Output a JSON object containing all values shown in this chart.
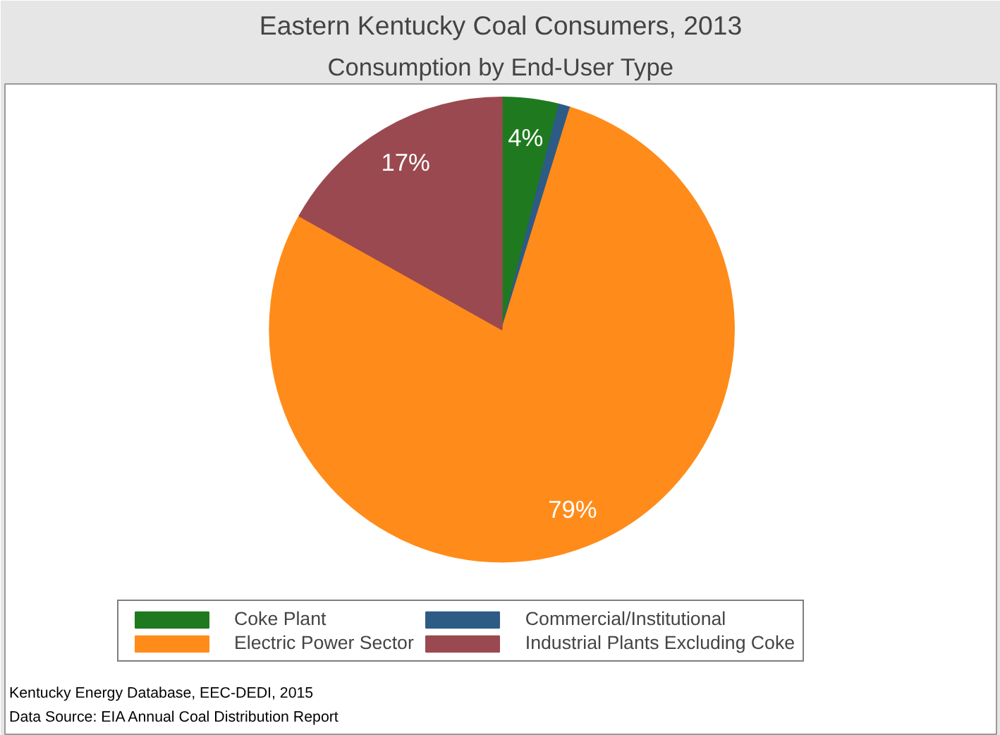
{
  "chart_data": {
    "type": "pie",
    "title": "Eastern Kentucky Coal Consumers, 2013",
    "subtitle": "Consumption by End-User Type",
    "categories": [
      "Coke Plant",
      "Commercial/Institutional",
      "Electric Power Sector",
      "Industrial Plants Excluding Coke"
    ],
    "values": [
      4,
      0.8,
      79,
      17
    ],
    "colors": [
      "#1f7a1f",
      "#2d5b86",
      "#ff8c1a",
      "#9b4950"
    ],
    "value_labels": [
      "4%",
      null,
      "79%",
      "17%"
    ],
    "legend": "bottom",
    "annotations": [
      "Kentucky Energy Database, EEC-DEDI, 2015",
      "Data Source: EIA Annual Coal Distribution Report"
    ]
  }
}
